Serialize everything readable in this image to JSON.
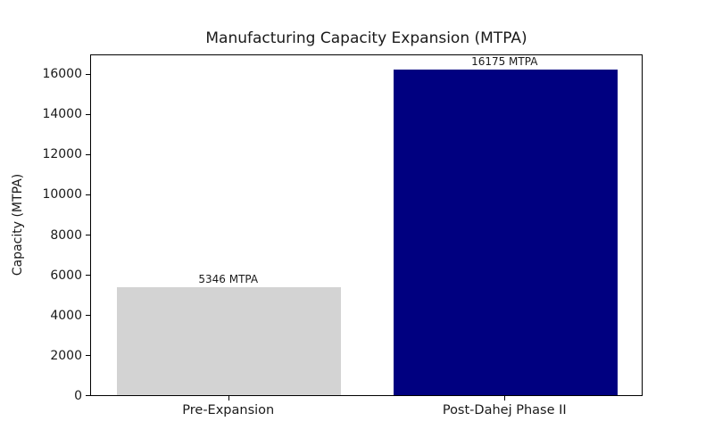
{
  "chart_data": {
    "type": "bar",
    "title": "Manufacturing Capacity Expansion (MTPA)",
    "xlabel": "",
    "ylabel": "Capacity (MTPA)",
    "categories": [
      "Pre-Expansion",
      "Post-Dahej Phase II"
    ],
    "values": [
      5346,
      16175
    ],
    "bar_value_labels": [
      "5346 MTPA",
      "16175 MTPA"
    ],
    "bar_colors": [
      "#d3d3d3",
      "#000080"
    ],
    "yticks": [
      0,
      2000,
      4000,
      6000,
      8000,
      10000,
      12000,
      14000,
      16000
    ],
    "ylim": [
      0,
      16984
    ],
    "grid": false,
    "legend": "none",
    "background_color": "#ffffff",
    "spine_color": "#000000"
  }
}
